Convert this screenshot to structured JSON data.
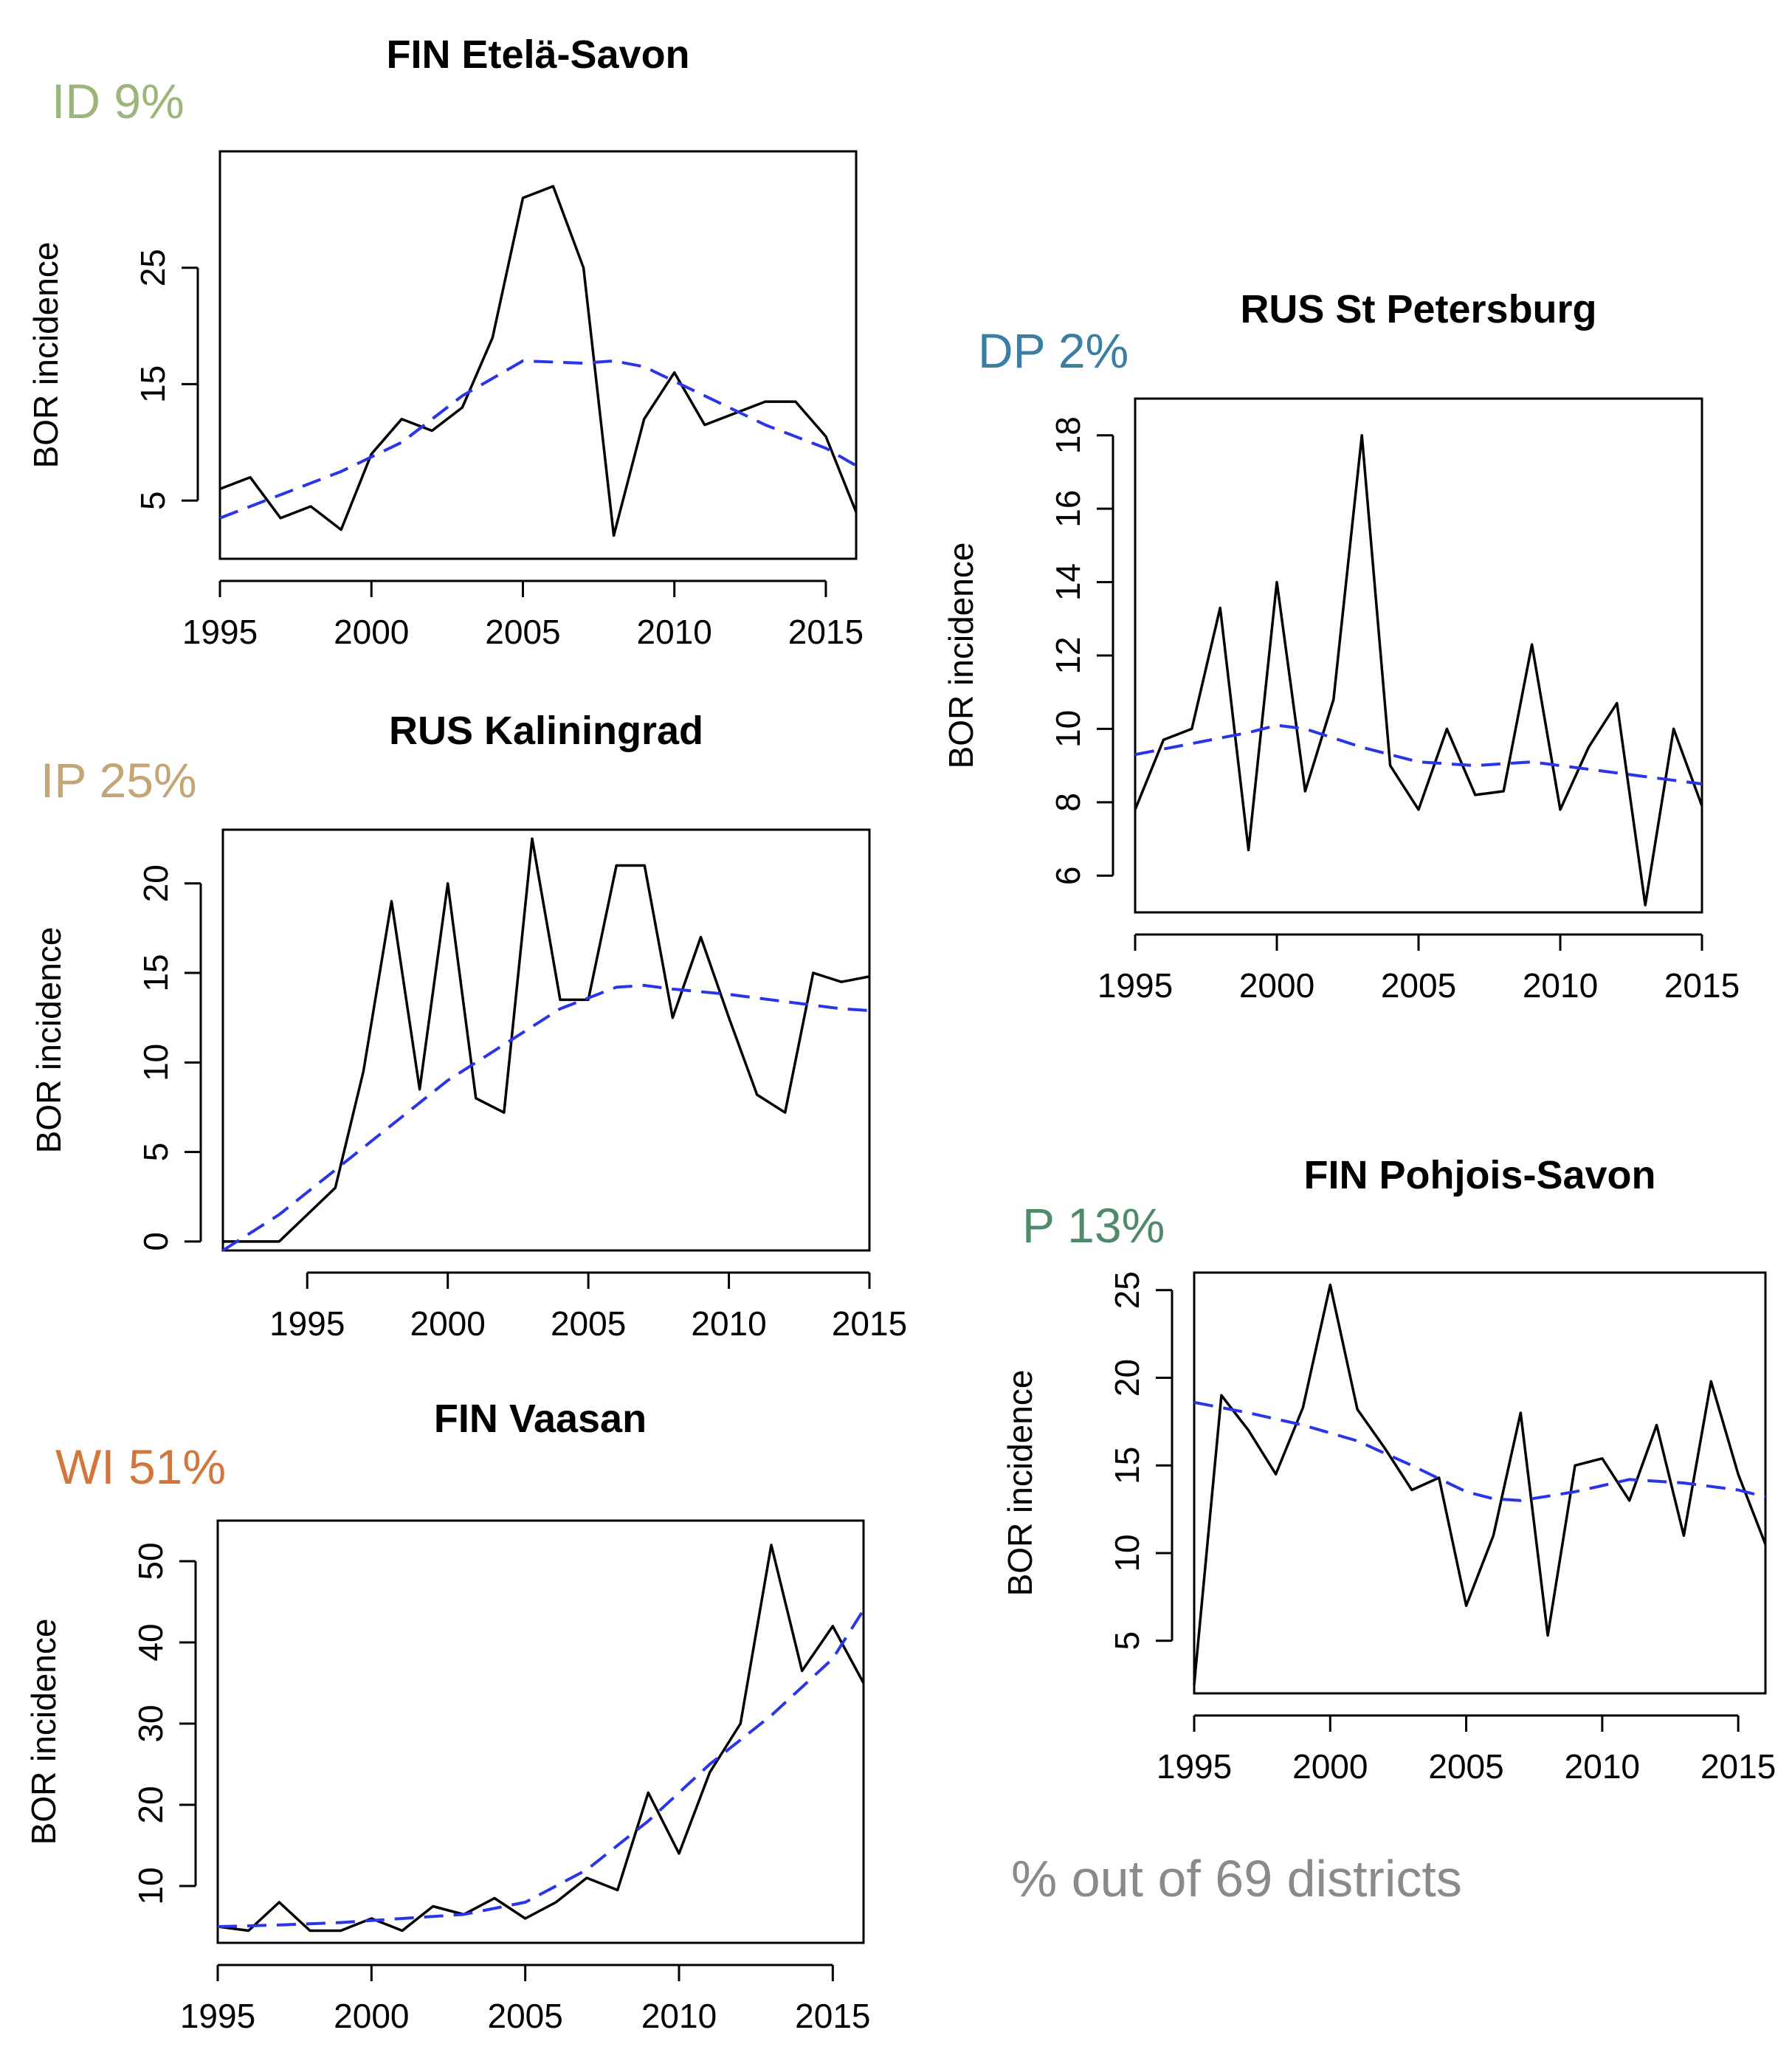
{
  "footnote": "% out of 69 districts",
  "chart_data": [
    {
      "type": "line",
      "title": "FIN Etelä-Savon",
      "category": {
        "label": "ID 9%",
        "color": "#9cb57a"
      },
      "ylabel": "BOR incidence",
      "xlim": [
        1995,
        2016
      ],
      "ylim": [
        0,
        35
      ],
      "xticks": [
        1995,
        2000,
        2005,
        2010,
        2015
      ],
      "yticks": [
        5,
        15,
        25
      ],
      "series": [
        {
          "style": "solid",
          "color": "#000000",
          "x": [
            1995,
            1996,
            1997,
            1998,
            1999,
            2000,
            2001,
            2002,
            2003,
            2004,
            2005,
            2006,
            2007,
            2008,
            2009,
            2010,
            2011,
            2012,
            2013,
            2014,
            2015,
            2016
          ],
          "y": [
            6,
            7,
            3.5,
            4.5,
            2.5,
            9,
            12,
            11,
            13,
            19,
            31,
            32,
            25,
            2,
            12,
            16,
            11.5,
            12.5,
            13.5,
            13.5,
            10.5,
            4
          ]
        },
        {
          "style": "dashed",
          "color": "#2a35e8",
          "x": [
            1995,
            1997,
            1999,
            2001,
            2003,
            2005,
            2007,
            2008,
            2009,
            2011,
            2013,
            2015,
            2016
          ],
          "y": [
            3.5,
            5.5,
            7.5,
            10,
            14,
            17,
            16.8,
            17,
            16.5,
            14,
            11.5,
            9.5,
            8
          ]
        }
      ]
    },
    {
      "type": "line",
      "title": "RUS Kaliningrad",
      "category": {
        "label": "IP 25%",
        "color": "#c4a576"
      },
      "ylabel": "BOR incidence",
      "xlim": [
        1992,
        2015
      ],
      "ylim": [
        -0.5,
        23
      ],
      "xticks": [
        1995,
        2000,
        2005,
        2010,
        2015
      ],
      "yticks": [
        0,
        5,
        10,
        15,
        20
      ],
      "series": [
        {
          "style": "solid",
          "color": "#000000",
          "x": [
            1992,
            1993,
            1994,
            1995,
            1996,
            1997,
            1998,
            1999,
            2000,
            2001,
            2002,
            2003,
            2004,
            2005,
            2006,
            2007,
            2008,
            2009,
            2010,
            2011,
            2012,
            2013,
            2014,
            2015
          ],
          "y": [
            0,
            0,
            0,
            1.5,
            3,
            9.5,
            19,
            8.5,
            20,
            8,
            7.2,
            22.5,
            13.5,
            13.5,
            21,
            21,
            12.5,
            17,
            12.5,
            8.2,
            7.2,
            15,
            14.5,
            14.8
          ]
        },
        {
          "style": "dashed",
          "color": "#2a35e8",
          "x": [
            1992,
            1994,
            1996,
            1998,
            2000,
            2002,
            2004,
            2006,
            2007,
            2008,
            2010,
            2012,
            2014,
            2015
          ],
          "y": [
            -0.5,
            1.5,
            4,
            6.5,
            9,
            11,
            13,
            14.2,
            14.3,
            14.1,
            13.8,
            13.4,
            13,
            12.9
          ]
        }
      ]
    },
    {
      "type": "line",
      "title": "FIN Vaasan",
      "category": {
        "label": "WI 51%",
        "color": "#d2763c"
      },
      "ylabel": "BOR incidence",
      "xlim": [
        1995,
        2016
      ],
      "ylim": [
        3,
        55
      ],
      "xticks": [
        1995,
        2000,
        2005,
        2010,
        2015
      ],
      "yticks": [
        10,
        20,
        30,
        40,
        50
      ],
      "series": [
        {
          "style": "solid",
          "color": "#000000",
          "x": [
            1995,
            1996,
            1997,
            1998,
            1999,
            2000,
            2001,
            2002,
            2003,
            2004,
            2005,
            2006,
            2007,
            2008,
            2009,
            2010,
            2011,
            2012,
            2013,
            2014,
            2015,
            2016
          ],
          "y": [
            5,
            4.5,
            8,
            4.5,
            4.5,
            6,
            4.5,
            7.5,
            6.5,
            8.5,
            6,
            8,
            11,
            9.5,
            21.5,
            14,
            24,
            30,
            52,
            36.5,
            42,
            35
          ]
        },
        {
          "style": "dashed",
          "color": "#2a35e8",
          "x": [
            1995,
            1997,
            1999,
            2001,
            2003,
            2005,
            2007,
            2009,
            2011,
            2013,
            2015,
            2016
          ],
          "y": [
            5,
            5.2,
            5.5,
            6,
            6.5,
            8,
            12,
            18,
            25,
            31,
            38,
            44
          ]
        }
      ]
    },
    {
      "type": "line",
      "title": "RUS St Petersburg",
      "category": {
        "label": "DP 2%",
        "color": "#3a7fa3"
      },
      "ylabel": "BOR incidence",
      "xlim": [
        1995,
        2015
      ],
      "ylim": [
        5,
        19
      ],
      "xticks": [
        1995,
        2000,
        2005,
        2010,
        2015
      ],
      "yticks": [
        6,
        8,
        10,
        12,
        14,
        16,
        18
      ],
      "series": [
        {
          "style": "solid",
          "color": "#000000",
          "x": [
            1995,
            1996,
            1997,
            1998,
            1999,
            2000,
            2001,
            2002,
            2003,
            2004,
            2005,
            2006,
            2007,
            2008,
            2009,
            2010,
            2011,
            2012,
            2013,
            2014,
            2015
          ],
          "y": [
            7.8,
            9.7,
            10,
            13.3,
            6.7,
            14,
            8.3,
            10.8,
            18,
            9,
            7.8,
            10,
            8.2,
            8.3,
            12.3,
            7.8,
            9.5,
            10.7,
            5.2,
            10,
            7.9
          ]
        },
        {
          "style": "dashed",
          "color": "#2a35e8",
          "x": [
            1995,
            1997,
            1999,
            2000,
            2001,
            2003,
            2005,
            2007,
            2009,
            2011,
            2013,
            2015
          ],
          "y": [
            9.3,
            9.6,
            9.9,
            10.1,
            10,
            9.5,
            9.1,
            9,
            9.1,
            8.9,
            8.7,
            8.5
          ]
        }
      ]
    },
    {
      "type": "line",
      "title": "FIN Pohjois-Savon",
      "category": {
        "label": "P 13%",
        "color": "#4f8a6a"
      },
      "ylabel": "BOR incidence",
      "xlim": [
        1995,
        2016
      ],
      "ylim": [
        2,
        26
      ],
      "xticks": [
        1995,
        2000,
        2005,
        2010,
        2015
      ],
      "yticks": [
        5,
        10,
        15,
        20,
        25
      ],
      "series": [
        {
          "style": "solid",
          "color": "#000000",
          "x": [
            1995,
            1996,
            1997,
            1998,
            1999,
            2000,
            2001,
            2002,
            2003,
            2004,
            2005,
            2006,
            2007,
            2008,
            2009,
            2010,
            2011,
            2012,
            2013,
            2014,
            2015,
            2016
          ],
          "y": [
            2.5,
            19,
            17,
            14.5,
            18.3,
            25.3,
            18.2,
            16,
            13.6,
            14.3,
            7,
            11,
            18,
            5.3,
            15,
            15.4,
            13,
            17.3,
            11,
            19.8,
            14.5,
            10.5
          ]
        },
        {
          "style": "dashed",
          "color": "#2a35e8",
          "x": [
            1995,
            1997,
            1999,
            2001,
            2003,
            2005,
            2006,
            2007,
            2009,
            2011,
            2013,
            2015,
            2016
          ],
          "y": [
            18.6,
            18,
            17.3,
            16.4,
            15,
            13.5,
            13.1,
            13,
            13.5,
            14.2,
            14,
            13.6,
            13.2
          ]
        }
      ]
    }
  ]
}
